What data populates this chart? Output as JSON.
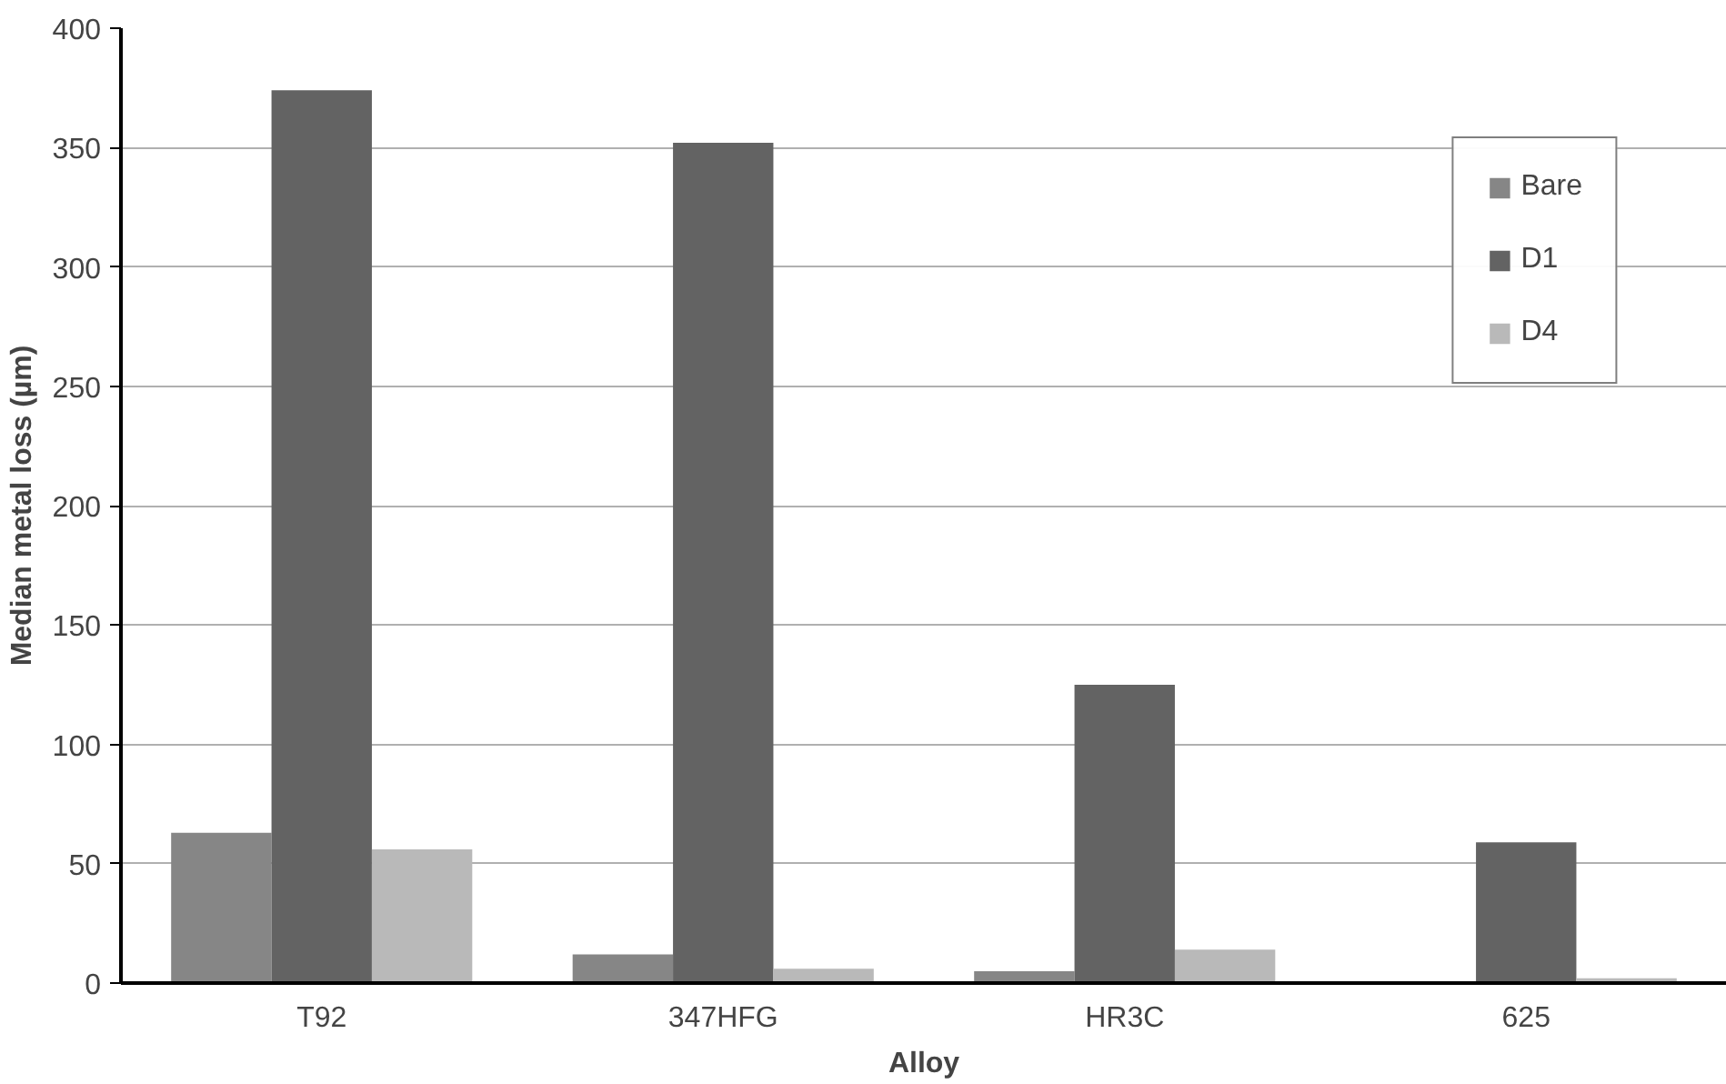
{
  "chart_data": {
    "type": "bar",
    "xlabel": "Alloy",
    "ylabel": "Median metal loss (µm)",
    "categories": [
      "T92",
      "347HFG",
      "HR3C",
      "625"
    ],
    "series": [
      {
        "name": "Bare",
        "color": "#868686",
        "values": [
          63,
          12,
          5,
          0
        ]
      },
      {
        "name": "D1",
        "color": "#636363",
        "values": [
          374,
          352,
          125,
          59
        ]
      },
      {
        "name": "D4",
        "color": "#b9b9b9",
        "values": [
          56,
          6,
          14,
          2
        ]
      }
    ],
    "ylim": [
      0,
      400
    ],
    "yticks": [
      0,
      50,
      100,
      150,
      200,
      250,
      300,
      350,
      400
    ],
    "grid": "y",
    "legend": "top right"
  }
}
